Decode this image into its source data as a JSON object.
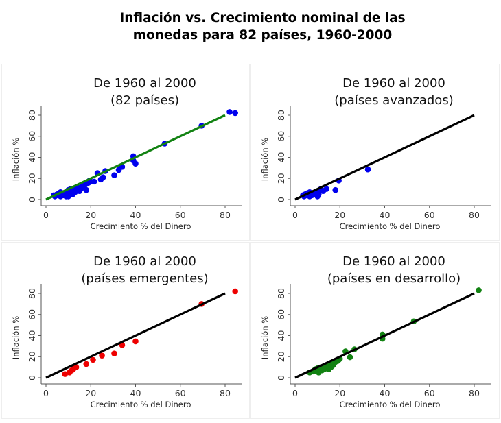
{
  "main_title": {
    "line1": "Inflación vs. Crecimiento nominal de las",
    "line2": "monedas para 82 países, 1960-2000"
  },
  "chart_data": [
    {
      "type": "scatter",
      "title_line1": "De 1960 al 2000",
      "title_line2": "(82 países)",
      "xlabel": "Crecimiento % del Dinero",
      "ylabel": "Inflación %",
      "xticks": [
        "0",
        "20",
        "40",
        "60",
        "80"
      ],
      "yticks": [
        "0",
        "20",
        "40",
        "60",
        "80"
      ],
      "xlim": [
        0,
        80
      ],
      "ylim": [
        0,
        80
      ],
      "grid": false,
      "marker_color": "#0000ee",
      "line_color": "#128212",
      "fit_line": {
        "x": [
          0,
          80
        ],
        "y": [
          0,
          80
        ]
      },
      "points": [
        [
          3.5,
          4
        ],
        [
          4,
          3
        ],
        [
          4.5,
          4
        ],
        [
          5,
          5
        ],
        [
          5.5,
          4
        ],
        [
          6,
          6
        ],
        [
          6.5,
          7
        ],
        [
          6.5,
          3
        ],
        [
          7,
          5
        ],
        [
          7.5,
          4
        ],
        [
          8,
          6
        ],
        [
          8,
          4
        ],
        [
          8.5,
          5
        ],
        [
          9,
          3
        ],
        [
          9,
          7
        ],
        [
          9.5,
          8
        ],
        [
          9.5,
          4
        ],
        [
          10,
          9
        ],
        [
          10,
          3
        ],
        [
          10.5,
          5
        ],
        [
          11,
          10
        ],
        [
          11,
          6
        ],
        [
          11.5,
          7
        ],
        [
          12,
          8
        ],
        [
          12,
          5
        ],
        [
          12.5,
          9
        ],
        [
          13,
          10
        ],
        [
          13,
          7
        ],
        [
          14,
          9
        ],
        [
          14.5,
          11
        ],
        [
          15,
          8
        ],
        [
          15.5,
          10
        ],
        [
          16,
          12
        ],
        [
          16.5,
          12
        ],
        [
          17,
          13
        ],
        [
          17.5,
          14
        ],
        [
          18,
          9
        ],
        [
          18,
          15
        ],
        [
          19,
          16
        ],
        [
          19.5,
          18
        ],
        [
          20,
          17
        ],
        [
          21.5,
          17
        ],
        [
          23,
          25
        ],
        [
          24.5,
          19
        ],
        [
          25.5,
          21
        ],
        [
          26.5,
          27
        ],
        [
          30.5,
          23
        ],
        [
          32.5,
          28
        ],
        [
          34,
          31
        ],
        [
          39,
          41
        ],
        [
          39,
          37
        ],
        [
          40,
          34
        ],
        [
          53,
          53
        ],
        [
          69.5,
          70
        ],
        [
          82,
          83
        ],
        [
          84.5,
          82
        ]
      ]
    },
    {
      "type": "scatter",
      "title_line1": "De 1960 al 2000",
      "title_line2": "(países avanzados)",
      "xlabel": "Crecimiento % del Dinero",
      "ylabel": "Inflación %",
      "xticks": [
        "0",
        "20",
        "40",
        "60",
        "80"
      ],
      "yticks": [
        "0",
        "20",
        "40",
        "60",
        "80"
      ],
      "xlim": [
        0,
        80
      ],
      "ylim": [
        0,
        80
      ],
      "grid": false,
      "marker_color": "#0000ee",
      "line_color": "#000000",
      "fit_line": {
        "x": [
          0,
          80
        ],
        "y": [
          0,
          80
        ]
      },
      "points": [
        [
          3.5,
          4
        ],
        [
          4,
          3
        ],
        [
          4.5,
          5
        ],
        [
          5,
          4
        ],
        [
          5.5,
          6
        ],
        [
          6,
          5
        ],
        [
          6.5,
          7
        ],
        [
          6.5,
          3
        ],
        [
          7,
          5
        ],
        [
          7.5,
          4
        ],
        [
          8,
          6
        ],
        [
          8.5,
          5
        ],
        [
          9,
          7
        ],
        [
          9.5,
          6
        ],
        [
          10,
          3
        ],
        [
          10,
          8
        ],
        [
          10.5,
          5
        ],
        [
          11,
          9
        ],
        [
          11.5,
          10
        ],
        [
          12.5,
          8
        ],
        [
          14,
          10
        ],
        [
          18,
          9
        ],
        [
          19.5,
          18
        ],
        [
          32.5,
          28.5
        ]
      ]
    },
    {
      "type": "scatter",
      "title_line1": "De 1960 al 2000",
      "title_line2": "(países emergentes)",
      "xlabel": "Crecimiento % del Dinero",
      "ylabel": "Inflación %",
      "xticks": [
        "0",
        "20",
        "40",
        "60",
        "80"
      ],
      "yticks": [
        "0",
        "20",
        "40",
        "60",
        "80"
      ],
      "xlim": [
        0,
        80
      ],
      "ylim": [
        0,
        80
      ],
      "grid": false,
      "marker_color": "#ee0000",
      "line_color": "#000000",
      "fit_line": {
        "x": [
          0,
          80
        ],
        "y": [
          0,
          80
        ]
      },
      "points": [
        [
          8.5,
          3.5
        ],
        [
          10.5,
          5
        ],
        [
          11.5,
          7
        ],
        [
          12,
          8
        ],
        [
          12.5,
          9
        ],
        [
          13.5,
          10
        ],
        [
          18,
          13
        ],
        [
          21,
          17
        ],
        [
          25,
          21
        ],
        [
          30.5,
          23
        ],
        [
          34,
          31
        ],
        [
          40,
          34.5
        ],
        [
          69.5,
          70
        ],
        [
          84.5,
          82
        ]
      ]
    },
    {
      "type": "scatter",
      "title_line1": "De 1960 al 2000",
      "title_line2": "(países en desarrollo)",
      "xlabel": "Crecimiento % del Dinero",
      "ylabel": "Inflación %",
      "xticks": [
        "0",
        "20",
        "40",
        "60",
        "80"
      ],
      "yticks": [
        "0",
        "20",
        "40",
        "60",
        "80"
      ],
      "xlim": [
        0,
        80
      ],
      "ylim": [
        0,
        80
      ],
      "grid": false,
      "marker_color": "#128212",
      "line_color": "#000000",
      "fit_line": {
        "x": [
          0,
          80
        ],
        "y": [
          0,
          80
        ]
      },
      "points": [
        [
          6.5,
          5
        ],
        [
          8,
          6
        ],
        [
          8.5,
          7
        ],
        [
          9,
          8
        ],
        [
          9.5,
          6
        ],
        [
          10,
          9
        ],
        [
          10,
          7
        ],
        [
          10.5,
          5
        ],
        [
          11,
          8
        ],
        [
          11.5,
          10
        ],
        [
          12,
          7
        ],
        [
          12.5,
          9
        ],
        [
          13,
          8
        ],
        [
          13.5,
          10
        ],
        [
          14,
          11
        ],
        [
          14.5,
          9
        ],
        [
          15,
          8
        ],
        [
          15.5,
          12
        ],
        [
          16,
          10
        ],
        [
          16.5,
          13
        ],
        [
          17,
          12
        ],
        [
          17.5,
          14
        ],
        [
          18,
          15
        ],
        [
          19,
          16
        ],
        [
          19.5,
          17
        ],
        [
          20,
          18
        ],
        [
          22.5,
          25
        ],
        [
          24.5,
          19.5
        ],
        [
          26.5,
          27
        ],
        [
          39,
          41
        ],
        [
          39,
          37
        ],
        [
          53,
          53.5
        ],
        [
          82,
          83
        ]
      ]
    }
  ]
}
